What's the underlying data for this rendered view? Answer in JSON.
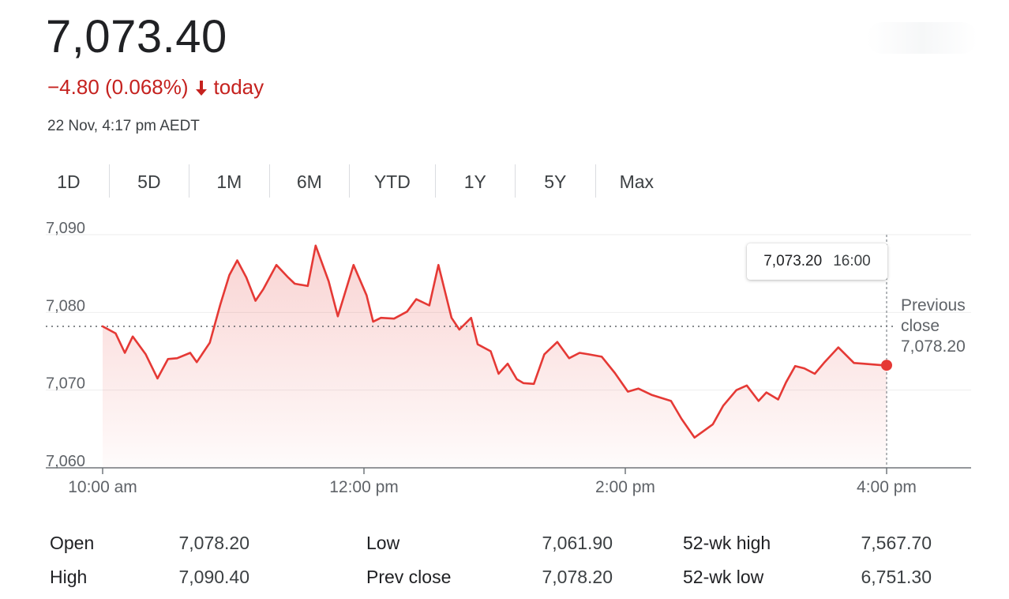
{
  "quote": {
    "price": "7,073.40",
    "change_text": "−4.80 (0.068%)",
    "change_period": "today",
    "timestamp": "22 Nov, 4:17 pm AEDT"
  },
  "colors": {
    "line": "#e53935",
    "down": "#c5221f",
    "accent": "#1a73e8",
    "grid": "#eeeeee",
    "axis": "#5f6368"
  },
  "tabs": [
    {
      "label": "1D",
      "active": true
    },
    {
      "label": "5D",
      "active": false
    },
    {
      "label": "1M",
      "active": false
    },
    {
      "label": "6M",
      "active": false
    },
    {
      "label": "YTD",
      "active": false
    },
    {
      "label": "1Y",
      "active": false
    },
    {
      "label": "5Y",
      "active": false
    },
    {
      "label": "Max",
      "active": false
    }
  ],
  "tooltip": {
    "value": "7,073.20",
    "time": "16:00"
  },
  "previous_close": {
    "label_line1": "Previous",
    "label_line2": "close",
    "value": "7,078.20"
  },
  "chart_data": {
    "type": "area",
    "ylim": [
      7060,
      7090
    ],
    "xlim": [
      10,
      16.67
    ],
    "y_ticks": [
      {
        "value": 7090,
        "label": "7,090"
      },
      {
        "value": 7080,
        "label": "7,080"
      },
      {
        "value": 7070,
        "label": "7,070"
      },
      {
        "value": 7060,
        "label": "7,060"
      }
    ],
    "x_ticks": [
      {
        "value": 10,
        "label": "10:00 am"
      },
      {
        "value": 12,
        "label": "12:00 pm"
      },
      {
        "value": 14,
        "label": "2:00 pm"
      },
      {
        "value": 16,
        "label": "4:00 pm"
      }
    ],
    "reference_line": 7078.2,
    "grid": true,
    "x": [
      10.0,
      10.1,
      10.17,
      10.23,
      10.33,
      10.42,
      10.5,
      10.57,
      10.67,
      10.72,
      10.82,
      10.9,
      10.97,
      11.03,
      11.1,
      11.17,
      11.23,
      11.33,
      11.42,
      11.47,
      11.57,
      11.63,
      11.73,
      11.8,
      11.92,
      12.02,
      12.07,
      12.13,
      12.23,
      12.33,
      12.4,
      12.5,
      12.57,
      12.67,
      12.73,
      12.82,
      12.87,
      12.97,
      13.03,
      13.1,
      13.17,
      13.22,
      13.3,
      13.38,
      13.48,
      13.57,
      13.65,
      13.72,
      13.82,
      13.92,
      14.02,
      14.1,
      14.2,
      14.35,
      14.43,
      14.53,
      14.67,
      14.75,
      14.85,
      14.93,
      15.02,
      15.08,
      15.17,
      15.23,
      15.3,
      15.37,
      15.45,
      15.52,
      15.63,
      15.75,
      15.82,
      15.97,
      16.0
    ],
    "y": [
      7078.2,
      7077.3,
      7074.8,
      7076.9,
      7074.6,
      7071.5,
      7074.0,
      7074.1,
      7074.8,
      7073.6,
      7076.1,
      7081.0,
      7084.8,
      7086.7,
      7084.5,
      7081.5,
      7083.0,
      7086.1,
      7084.5,
      7083.7,
      7083.4,
      7088.6,
      7084.0,
      7079.5,
      7086.1,
      7082.2,
      7078.8,
      7079.3,
      7079.2,
      7080.1,
      7081.7,
      7080.9,
      7086.1,
      7079.3,
      7077.8,
      7079.3,
      7075.9,
      7075.0,
      7072.1,
      7073.4,
      7071.4,
      7070.9,
      7070.8,
      7074.6,
      7076.2,
      7074.1,
      7074.8,
      7074.6,
      7074.3,
      7072.2,
      7069.8,
      7070.2,
      7069.4,
      7068.6,
      7066.3,
      7063.9,
      7065.6,
      7068.0,
      7070.0,
      7070.6,
      7068.6,
      7069.7,
      7068.8,
      7071.0,
      7073.1,
      7072.8,
      7072.1,
      7073.5,
      7075.5,
      7073.5,
      7073.4,
      7073.2,
      7073.2
    ]
  },
  "stats": {
    "col1": [
      {
        "label": "Open",
        "value": "7,078.20"
      },
      {
        "label": "High",
        "value": "7,090.40"
      }
    ],
    "col2": [
      {
        "label": "Low",
        "value": "7,061.90"
      },
      {
        "label": "Prev close",
        "value": "7,078.20"
      }
    ],
    "col3": [
      {
        "label": "52-wk high",
        "value": "7,567.70"
      },
      {
        "label": "52-wk low",
        "value": "6,751.30"
      }
    ]
  }
}
